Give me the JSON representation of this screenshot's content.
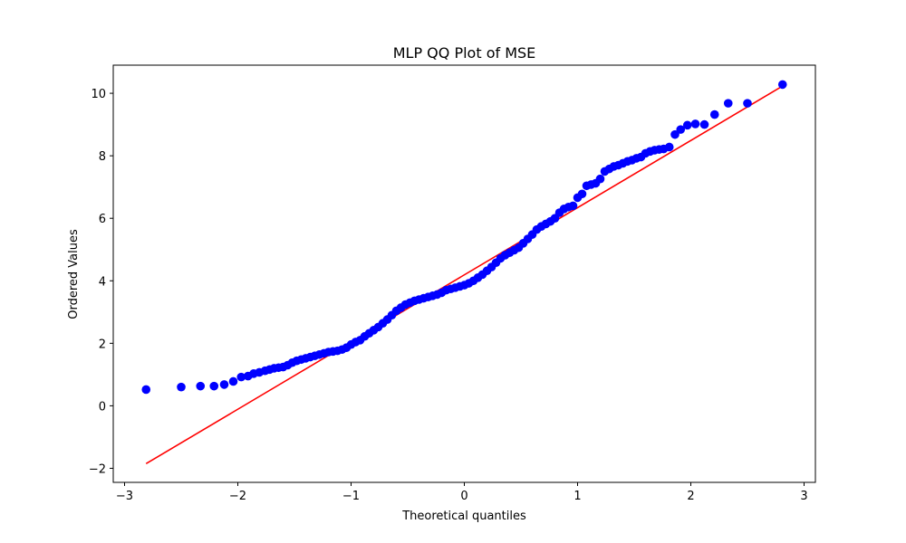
{
  "chart_data": {
    "type": "scatter",
    "title": "MLP QQ Plot of MSE",
    "xlabel": "Theoretical quantiles",
    "ylabel": "Ordered Values",
    "xlim": [
      -3.1,
      3.1
    ],
    "ylim": [
      -2.45,
      10.9
    ],
    "xticks": [
      -3,
      -2,
      -1,
      0,
      1,
      2,
      3
    ],
    "xtick_labels": [
      "−3",
      "−2",
      "−1",
      "0",
      "1",
      "2",
      "3"
    ],
    "yticks": [
      -2,
      0,
      2,
      4,
      6,
      8,
      10
    ],
    "ytick_labels": [
      "−2",
      "0",
      "2",
      "4",
      "6",
      "8",
      "10"
    ],
    "grid": false,
    "legend": "none",
    "colors": {
      "points": "#0000ff",
      "fit_line": "#ff0000"
    },
    "fit_line": {
      "slope": 2.15,
      "intercept": 4.19,
      "x_range": [
        -2.81,
        2.81
      ]
    },
    "series": [
      {
        "marker": "circle",
        "x": [
          -2.81,
          -2.5,
          -2.33,
          -2.21,
          -2.12,
          -2.04,
          -1.97,
          -1.91,
          -1.86,
          -1.81,
          -1.76,
          -1.72,
          -1.68,
          -1.64,
          -1.6,
          -1.56,
          -1.52,
          -1.48,
          -1.44,
          -1.4,
          -1.36,
          -1.32,
          -1.28,
          -1.24,
          -1.2,
          -1.16,
          -1.12,
          -1.08,
          -1.04,
          -1.0,
          -0.96,
          -0.92,
          -0.88,
          -0.84,
          -0.8,
          -0.76,
          -0.72,
          -0.68,
          -0.64,
          -0.6,
          -0.56,
          -0.52,
          -0.48,
          -0.44,
          -0.4,
          -0.36,
          -0.32,
          -0.28,
          -0.24,
          -0.2,
          -0.16,
          -0.12,
          -0.08,
          -0.04,
          0.0,
          0.04,
          0.08,
          0.12,
          0.16,
          0.2,
          0.24,
          0.28,
          0.32,
          0.36,
          0.4,
          0.44,
          0.48,
          0.52,
          0.56,
          0.6,
          0.64,
          0.68,
          0.72,
          0.76,
          0.8,
          0.84,
          0.88,
          0.92,
          0.96,
          1.0,
          1.04,
          1.08,
          1.12,
          1.16,
          1.2,
          1.24,
          1.28,
          1.32,
          1.36,
          1.4,
          1.44,
          1.48,
          1.52,
          1.56,
          1.6,
          1.64,
          1.68,
          1.72,
          1.76,
          1.81,
          1.86,
          1.91,
          1.97,
          2.04,
          2.12,
          2.21,
          2.33,
          2.5,
          2.81
        ],
        "y": [
          0.52,
          0.6,
          0.63,
          0.63,
          0.68,
          0.78,
          0.92,
          0.95,
          1.03,
          1.07,
          1.12,
          1.16,
          1.2,
          1.22,
          1.24,
          1.3,
          1.38,
          1.44,
          1.48,
          1.52,
          1.56,
          1.6,
          1.64,
          1.68,
          1.72,
          1.74,
          1.76,
          1.8,
          1.86,
          1.96,
          2.04,
          2.1,
          2.22,
          2.32,
          2.42,
          2.52,
          2.64,
          2.76,
          2.9,
          3.04,
          3.14,
          3.24,
          3.3,
          3.36,
          3.4,
          3.44,
          3.48,
          3.52,
          3.56,
          3.62,
          3.7,
          3.74,
          3.78,
          3.82,
          3.86,
          3.92,
          4.0,
          4.1,
          4.2,
          4.32,
          4.44,
          4.58,
          4.72,
          4.82,
          4.9,
          4.98,
          5.06,
          5.2,
          5.34,
          5.48,
          5.64,
          5.74,
          5.82,
          5.9,
          6.0,
          6.18,
          6.3,
          6.36,
          6.4,
          6.66,
          6.78,
          7.04,
          7.08,
          7.12,
          7.26,
          7.5,
          7.58,
          7.66,
          7.7,
          7.76,
          7.82,
          7.86,
          7.92,
          7.96,
          8.08,
          8.14,
          8.18,
          8.2,
          8.22,
          8.28,
          8.68,
          8.84,
          8.98,
          9.02,
          9.0,
          9.32,
          9.68,
          9.68,
          10.28
        ]
      }
    ]
  }
}
